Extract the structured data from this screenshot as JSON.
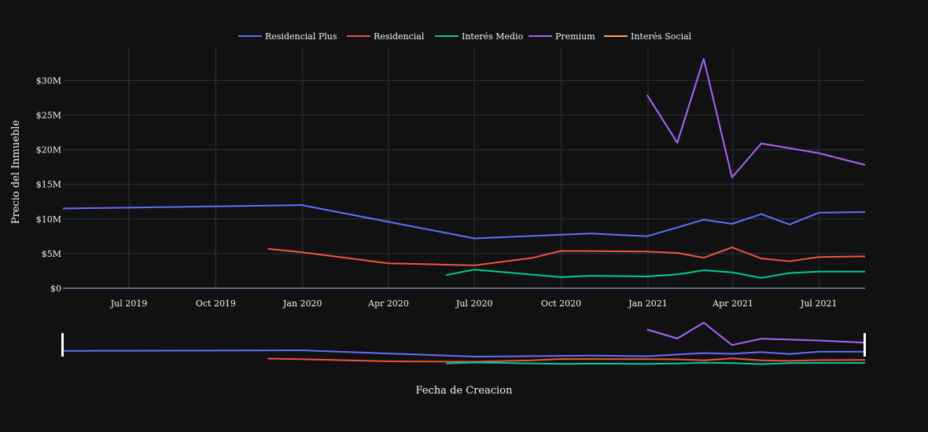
{
  "chart_data": {
    "type": "line",
    "xlabel": "Fecha de Creacion",
    "ylabel": "Precio del Inmueble",
    "x_ticks": [
      "Jul 2019",
      "Oct 2019",
      "Jan 2020",
      "Apr 2020",
      "Jul 2020",
      "Oct 2020",
      "Jan 2021",
      "Apr 2021",
      "Jul 2021"
    ],
    "y_ticks": [
      "$0",
      "$5M",
      "$10M",
      "$15M",
      "$20M",
      "$25M",
      "$30M"
    ],
    "y_tick_values": [
      0,
      5,
      10,
      15,
      20,
      25,
      30
    ],
    "x_range": [
      "2019-04-22",
      "2021-08-19"
    ],
    "y_range": [
      0,
      34.8
    ],
    "y_unit": "millions",
    "legend_position": "top-center",
    "grid": true,
    "range_slider": true,
    "series": [
      {
        "name": "Residencial Plus",
        "color": "#636efa",
        "points": [
          [
            "2019-04-22",
            11.5
          ],
          [
            "2019-12-31",
            12.0
          ],
          [
            "2020-07-01",
            7.2
          ],
          [
            "2020-11-01",
            7.9
          ],
          [
            "2020-12-31",
            7.5
          ],
          [
            "2021-03-01",
            9.9
          ],
          [
            "2021-03-31",
            9.3
          ],
          [
            "2021-05-01",
            10.7
          ],
          [
            "2021-05-31",
            9.2
          ],
          [
            "2021-07-01",
            10.9
          ],
          [
            "2021-08-19",
            11.0
          ]
        ]
      },
      {
        "name": "Residencial",
        "color": "#ef553b",
        "points": [
          [
            "2019-11-25",
            5.7
          ],
          [
            "2019-12-31",
            5.2
          ],
          [
            "2020-04-01",
            3.6
          ],
          [
            "2020-07-01",
            3.3
          ],
          [
            "2020-09-01",
            4.4
          ],
          [
            "2020-10-01",
            5.4
          ],
          [
            "2020-12-31",
            5.3
          ],
          [
            "2021-02-01",
            5.1
          ],
          [
            "2021-03-01",
            4.4
          ],
          [
            "2021-03-31",
            5.9
          ],
          [
            "2021-05-01",
            4.3
          ],
          [
            "2021-05-31",
            3.9
          ],
          [
            "2021-07-01",
            4.5
          ],
          [
            "2021-08-19",
            4.6
          ]
        ]
      },
      {
        "name": "Interés Medio",
        "color": "#00cc96",
        "points": [
          [
            "2020-06-01",
            1.9
          ],
          [
            "2020-07-01",
            2.7
          ],
          [
            "2020-10-01",
            1.6
          ],
          [
            "2020-11-01",
            1.8
          ],
          [
            "2020-12-31",
            1.7
          ],
          [
            "2021-02-01",
            2.0
          ],
          [
            "2021-03-01",
            2.6
          ],
          [
            "2021-03-31",
            2.3
          ],
          [
            "2021-05-01",
            1.5
          ],
          [
            "2021-05-31",
            2.2
          ],
          [
            "2021-07-01",
            2.4
          ],
          [
            "2021-08-19",
            2.4
          ]
        ]
      },
      {
        "name": "Premium",
        "color": "#ab63fa",
        "points": [
          [
            "2020-12-31",
            27.9
          ],
          [
            "2021-02-01",
            21.0
          ],
          [
            "2021-03-01",
            33.1
          ],
          [
            "2021-03-31",
            16.0
          ],
          [
            "2021-05-01",
            20.9
          ],
          [
            "2021-07-01",
            19.5
          ],
          [
            "2021-08-19",
            17.8
          ]
        ]
      },
      {
        "name": "Interés Social",
        "color": "#ffa15a",
        "points": []
      }
    ]
  }
}
